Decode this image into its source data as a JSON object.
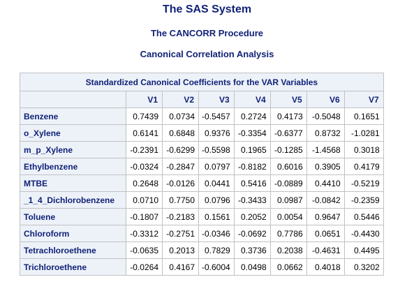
{
  "titles": {
    "system": "The SAS System",
    "procedure": "The CANCORR Procedure",
    "analysis": "Canonical Correlation Analysis"
  },
  "table": {
    "caption": "Standardized Canonical Coefficients for the VAR Variables",
    "corner": "",
    "columns": [
      "V1",
      "V2",
      "V3",
      "V4",
      "V5",
      "V6",
      "V7"
    ],
    "rows": [
      {
        "label": "Benzene",
        "values": [
          "0.7439",
          "0.0734",
          "-0.5457",
          "0.2724",
          "0.4173",
          "-0.5048",
          "0.1651"
        ]
      },
      {
        "label": "o_Xylene",
        "values": [
          "0.6141",
          "0.6848",
          "0.9376",
          "-0.3354",
          "-0.6377",
          "0.8732",
          "-1.0281"
        ]
      },
      {
        "label": "m_p_Xylene",
        "values": [
          "-0.2391",
          "-0.6299",
          "-0.5598",
          "0.1965",
          "-0.1285",
          "-1.4568",
          "0.3018"
        ]
      },
      {
        "label": "Ethylbenzene",
        "values": [
          "-0.0324",
          "-0.2847",
          "0.0797",
          "-0.8182",
          "0.6016",
          "0.3905",
          "0.4179"
        ]
      },
      {
        "label": "MTBE",
        "values": [
          "0.2648",
          "-0.0126",
          "0.0441",
          "0.5416",
          "-0.0889",
          "0.4410",
          "-0.5219"
        ]
      },
      {
        "label": "_1_4_Dichlorobenzene",
        "values": [
          "0.0710",
          "0.7750",
          "0.0796",
          "-0.3433",
          "0.0987",
          "-0.0842",
          "-0.2359"
        ]
      },
      {
        "label": "Toluene",
        "values": [
          "-0.1807",
          "-0.2183",
          "0.1561",
          "0.2052",
          "0.0054",
          "0.9647",
          "0.5446"
        ]
      },
      {
        "label": "Chloroform",
        "values": [
          "-0.3312",
          "-0.2751",
          "-0.0346",
          "-0.0692",
          "0.7786",
          "0.0651",
          "-0.4430"
        ]
      },
      {
        "label": "Tetrachloroethene",
        "values": [
          "-0.0635",
          "0.2013",
          "0.7829",
          "0.3736",
          "0.2038",
          "-0.4631",
          "0.4495"
        ]
      },
      {
        "label": "Trichloroethene",
        "values": [
          "-0.0264",
          "0.4167",
          "-0.6004",
          "0.0498",
          "0.0662",
          "0.4018",
          "0.3202"
        ]
      }
    ]
  }
}
